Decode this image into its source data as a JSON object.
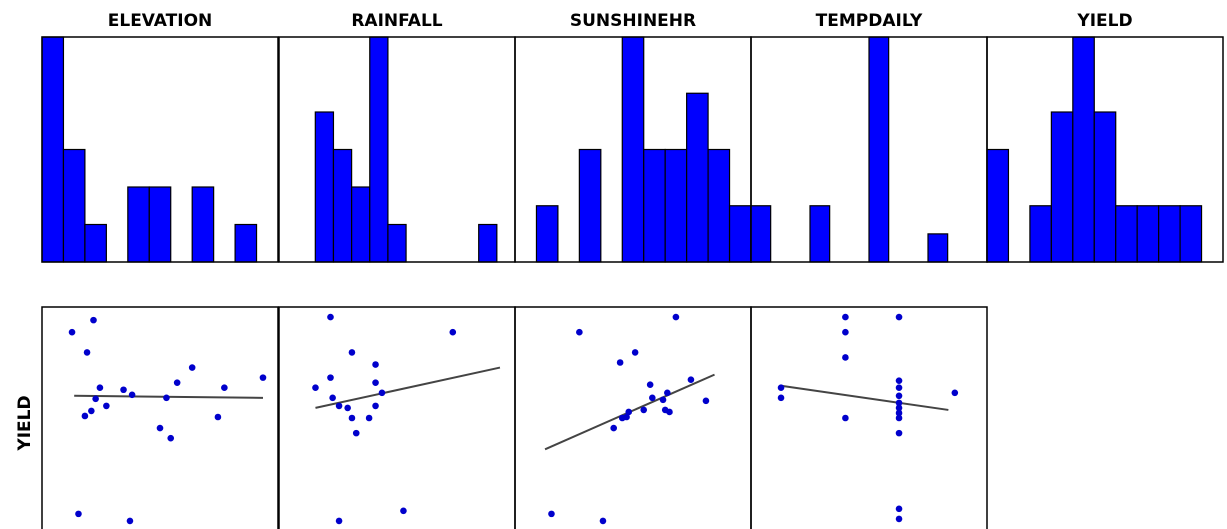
{
  "chart_data": [
    {
      "type": "bar",
      "title": "ELEVATION",
      "values": [
        6,
        3,
        1,
        0,
        2,
        2,
        0,
        2,
        0,
        1
      ],
      "xlim": [
        0,
        11
      ]
    },
    {
      "type": "bar",
      "title": "RAINFALL",
      "values": [
        0,
        0,
        4,
        3,
        2,
        6,
        1,
        0,
        0,
        0,
        0,
        1
      ],
      "xlim": [
        0,
        13
      ]
    },
    {
      "type": "bar",
      "title": "SUNSHINEHR",
      "values": [
        0,
        1,
        0,
        2,
        0,
        4,
        2,
        2,
        3,
        2,
        1
      ],
      "xlim": [
        0,
        11
      ]
    },
    {
      "type": "bar",
      "title": "TEMPDAILY",
      "values": [
        1,
        0,
        0,
        1,
        0,
        0,
        4,
        0,
        0,
        0.5
      ],
      "xlim": [
        0,
        12
      ]
    },
    {
      "type": "bar",
      "title": "YIELD",
      "values": [
        3,
        0,
        1.5,
        4,
        6,
        4,
        1.5,
        1.5,
        1.5,
        1.5
      ],
      "xlim": [
        0,
        11
      ]
    },
    {
      "type": "scatter",
      "ylabel": "YIELD",
      "points": [
        [
          1.4,
          19.5
        ],
        [
          2.4,
          20.7
        ],
        [
          2.1,
          17.5
        ],
        [
          2.7,
          14.0
        ],
        [
          3.0,
          12.2
        ],
        [
          2.3,
          11.7
        ],
        [
          2.0,
          11.2
        ],
        [
          3.8,
          13.8
        ],
        [
          2.5,
          12.9
        ],
        [
          4.2,
          13.3
        ],
        [
          6.3,
          14.5
        ],
        [
          5.8,
          13.0
        ],
        [
          7.0,
          16.0
        ],
        [
          8.2,
          11.1
        ],
        [
          5.5,
          10.0
        ],
        [
          6.0,
          9.0
        ],
        [
          8.5,
          14.0
        ],
        [
          10.3,
          15.0
        ],
        [
          1.7,
          1.5
        ],
        [
          4.1,
          0.8
        ]
      ],
      "fit": [
        [
          1.5,
          13.2
        ],
        [
          10.3,
          13.0
        ]
      ],
      "xlim": [
        0,
        11
      ],
      "ylim": [
        0,
        22
      ]
    },
    {
      "type": "scatter",
      "points": [
        [
          2.4,
          21
        ],
        [
          8.1,
          19.5
        ],
        [
          3.4,
          17.5
        ],
        [
          4.5,
          16.3
        ],
        [
          2.4,
          15.0
        ],
        [
          1.7,
          14.0
        ],
        [
          4.5,
          14.5
        ],
        [
          4.8,
          13.5
        ],
        [
          2.5,
          13.0
        ],
        [
          3.2,
          12.0
        ],
        [
          2.8,
          12.2
        ],
        [
          4.5,
          12.2
        ],
        [
          4.2,
          11.0
        ],
        [
          3.4,
          11.0
        ],
        [
          3.6,
          9.5
        ],
        [
          2.8,
          0.8
        ],
        [
          5.8,
          1.8
        ]
      ],
      "fit": [
        [
          1.7,
          12.0
        ],
        [
          10.3,
          16.0
        ]
      ],
      "xlim": [
        0,
        11
      ],
      "ylim": [
        0,
        22
      ]
    },
    {
      "type": "scatter",
      "points": [
        [
          3.0,
          19.5
        ],
        [
          7.5,
          21.0
        ],
        [
          5.6,
          17.5
        ],
        [
          4.9,
          16.5
        ],
        [
          6.3,
          14.3
        ],
        [
          6.4,
          13.0
        ],
        [
          7.1,
          13.5
        ],
        [
          8.2,
          14.8
        ],
        [
          8.9,
          12.7
        ],
        [
          6.9,
          12.8
        ],
        [
          7.0,
          11.8
        ],
        [
          6.0,
          11.8
        ],
        [
          5.2,
          11.1
        ],
        [
          5.0,
          11.0
        ],
        [
          5.3,
          11.6
        ],
        [
          4.6,
          10.0
        ],
        [
          7.2,
          11.6
        ],
        [
          1.7,
          1.5
        ],
        [
          4.1,
          0.8
        ]
      ],
      "fit": [
        [
          1.4,
          7.9
        ],
        [
          9.3,
          15.3
        ]
      ],
      "xlim": [
        0,
        11
      ],
      "ylim": [
        0,
        22
      ]
    },
    {
      "type": "scatter",
      "points": [
        [
          4.4,
          21.0
        ],
        [
          6.9,
          21.0
        ],
        [
          4.4,
          19.5
        ],
        [
          4.4,
          17.0
        ],
        [
          6.9,
          14.7
        ],
        [
          6.9,
          14.0
        ],
        [
          6.9,
          13.2
        ],
        [
          1.4,
          14.0
        ],
        [
          1.4,
          13.0
        ],
        [
          6.9,
          12.5
        ],
        [
          6.9,
          12.0
        ],
        [
          6.9,
          11.5
        ],
        [
          6.9,
          11.0
        ],
        [
          6.9,
          9.5
        ],
        [
          4.4,
          11.0
        ],
        [
          9.5,
          13.5
        ],
        [
          6.9,
          2.0
        ],
        [
          6.9,
          1.0
        ]
      ],
      "fit": [
        [
          1.4,
          14.2
        ],
        [
          9.2,
          11.8
        ]
      ],
      "xlim": [
        0,
        11
      ],
      "ylim": [
        0,
        22
      ]
    }
  ]
}
